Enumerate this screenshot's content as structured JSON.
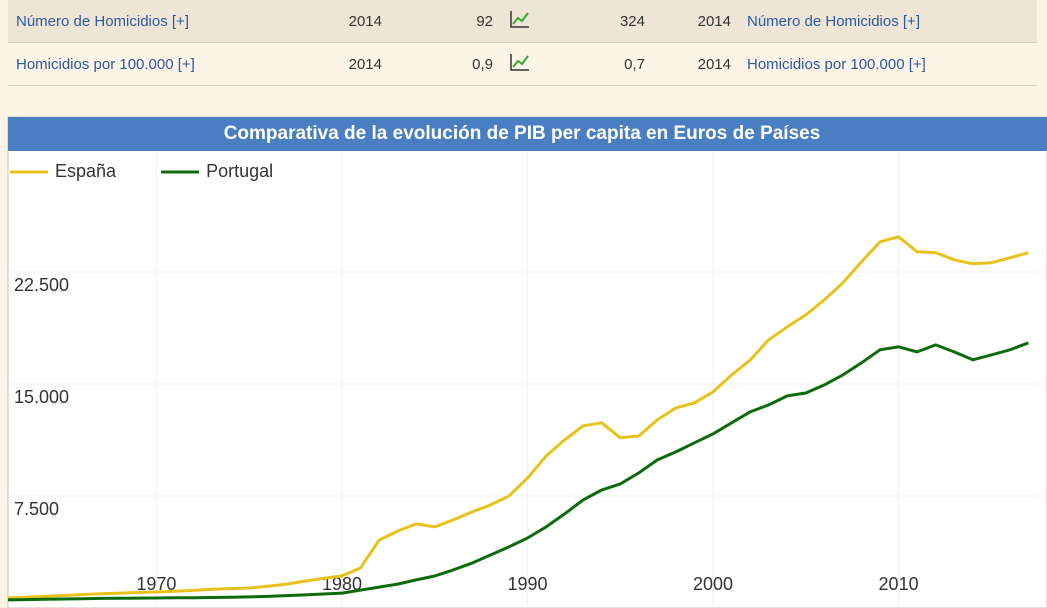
{
  "table": {
    "rows": [
      [
        "Número de Homicidios [+]",
        "2014",
        "92",
        "324",
        "2014",
        "Número de Homicidios [+]"
      ],
      [
        "Homicidios por 100.000 [+]",
        "2014",
        "0,9",
        "0,7",
        "2014",
        "Homicidios por 100.000 [+]"
      ]
    ]
  },
  "chart_data": {
    "type": "line",
    "title": "Comparativa de la evolución de PIB per capita en Euros de Países",
    "x": [
      1962,
      1963,
      1964,
      1965,
      1966,
      1967,
      1968,
      1969,
      1970,
      1971,
      1972,
      1973,
      1974,
      1975,
      1976,
      1977,
      1978,
      1979,
      1980,
      1981,
      1982,
      1983,
      1984,
      1985,
      1986,
      1987,
      1988,
      1989,
      1990,
      1991,
      1992,
      1993,
      1994,
      1995,
      1996,
      1997,
      1998,
      1999,
      2000,
      2001,
      2002,
      2003,
      2004,
      2005,
      2006,
      2007,
      2008,
      2009,
      2010,
      2011,
      2012,
      2013,
      2014,
      2015,
      2016,
      2017
    ],
    "series": [
      {
        "name": "España",
        "color": "#e8c21a",
        "values": [
          670,
          720,
          780,
          840,
          900,
          950,
          1000,
          1040,
          1070,
          1120,
          1180,
          1250,
          1300,
          1340,
          1450,
          1600,
          1800,
          1980,
          2150,
          2680,
          4550,
          5150,
          5630,
          5430,
          5900,
          6430,
          6900,
          7500,
          8700,
          10180,
          11260,
          12200,
          12400,
          11400,
          11520,
          12600,
          13400,
          13740,
          14470,
          15600,
          16600,
          17960,
          18830,
          19630,
          20640,
          21780,
          23180,
          24520,
          24860,
          23850,
          23790,
          23320,
          23050,
          23120,
          23450,
          23790
        ]
      },
      {
        "name": "Portugal",
        "color": "#0d6b0d",
        "values": [
          540,
          560,
          580,
          600,
          620,
          640,
          650,
          660,
          670,
          680,
          690,
          700,
          720,
          740,
          780,
          830,
          880,
          940,
          1000,
          1200,
          1400,
          1600,
          1880,
          2140,
          2550,
          3000,
          3550,
          4090,
          4690,
          5430,
          6300,
          7240,
          7900,
          8310,
          9050,
          9920,
          10450,
          11060,
          11660,
          12400,
          13130,
          13600,
          14200,
          14400,
          14940,
          15610,
          16420,
          17290,
          17490,
          17150,
          17620,
          17150,
          16620,
          16950,
          17290,
          17760
        ]
      }
    ],
    "xlim": [
      1962,
      2018
    ],
    "xticks": [
      1970,
      1980,
      1990,
      2000,
      2010
    ],
    "ylim": [
      0,
      30000
    ],
    "yticks": [
      {
        "value": 7500,
        "label": "7.500"
      },
      {
        "value": 15000,
        "label": "15.000"
      },
      {
        "value": 22500,
        "label": "22.500"
      }
    ],
    "grid": true,
    "legend": "top-left"
  }
}
